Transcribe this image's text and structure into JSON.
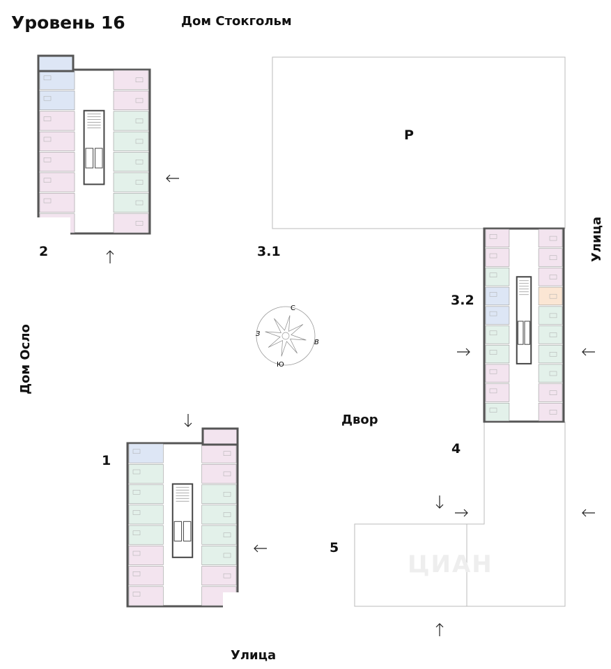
{
  "title": "Уровень 16",
  "labels": {
    "house_stockholm": "Дом Стокгольм",
    "house_oslo": "Дом Осло",
    "street_right": "Улица",
    "street_bottom": "Улица",
    "yard": "Двор",
    "parking": "P"
  },
  "sections": [
    "2",
    "3.1",
    "3.2",
    "1",
    "4",
    "5"
  ],
  "compass": {
    "north": "С",
    "south": "Ю",
    "west": "З",
    "east": "В"
  },
  "colors": {
    "pink": "#f3e4ef",
    "green": "#e3f1ea",
    "blue": "#dde6f5",
    "orange": "#fbe6d4",
    "wall": "#555555"
  }
}
